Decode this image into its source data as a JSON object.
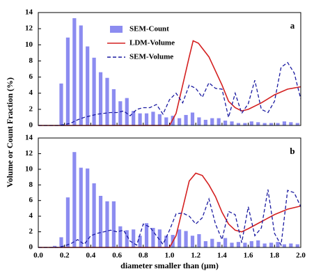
{
  "chart_data": [
    {
      "type": "bar",
      "label": "a",
      "ylabel": "Volume or Count Fraction (%)",
      "legend": "upper center",
      "xlim": [
        0,
        2
      ],
      "ylim": [
        0,
        14
      ],
      "xticks": [
        0,
        0.2,
        0.4,
        0.6,
        0.8,
        1,
        1.2,
        1.4,
        1.6,
        1.8,
        2
      ],
      "yticks": [
        0,
        2,
        4,
        6,
        8,
        10,
        12,
        14
      ],
      "series": [
        {
          "name": "SEM-Count",
          "type": "bar",
          "color": "#8c8cf0",
          "x": [
            0.175,
            0.225,
            0.275,
            0.325,
            0.375,
            0.425,
            0.475,
            0.525,
            0.575,
            0.625,
            0.675,
            0.725,
            0.775,
            0.825,
            0.875,
            0.925,
            0.975,
            1.025,
            1.075,
            1.125,
            1.175,
            1.225,
            1.275,
            1.325,
            1.375,
            1.425,
            1.475,
            1.525,
            1.575,
            1.625,
            1.675,
            1.725,
            1.775,
            1.825,
            1.875,
            1.925,
            1.975
          ],
          "values": [
            5.2,
            10.9,
            13.3,
            12.4,
            9.8,
            8.4,
            6.6,
            5.9,
            4.5,
            3.0,
            3.4,
            1.8,
            1.5,
            1.5,
            1.7,
            1.4,
            1.0,
            1.2,
            0.9,
            1.3,
            1.6,
            1.0,
            0.7,
            0.9,
            0.9,
            0.6,
            0.5,
            0.3,
            0.3,
            0.5,
            0.4,
            0.3,
            0.3,
            0.3,
            0.5,
            0.4,
            0.3
          ]
        },
        {
          "name": "LDM-Volume",
          "type": "line",
          "color": "#d42020",
          "dashed": false,
          "x": [
            0,
            0.2,
            0.4,
            0.6,
            0.8,
            1.0,
            1.05,
            1.1,
            1.15,
            1.18,
            1.22,
            1.3,
            1.4,
            1.45,
            1.5,
            1.55,
            1.6,
            1.7,
            1.8,
            1.9,
            2.0
          ],
          "values": [
            0,
            0,
            0,
            0,
            0,
            0,
            1.5,
            5,
            8.5,
            10.5,
            10.2,
            8.5,
            5,
            3,
            2.2,
            1.8,
            2,
            2.8,
            3.8,
            4.5,
            4.8
          ]
        },
        {
          "name": "SEM-Volume",
          "type": "line",
          "color": "#1a1aa0",
          "dashed": true,
          "x": [
            0,
            0.15,
            0.2,
            0.25,
            0.3,
            0.35,
            0.4,
            0.45,
            0.5,
            0.55,
            0.6,
            0.65,
            0.7,
            0.75,
            0.8,
            0.85,
            0.9,
            0.95,
            1.0,
            1.05,
            1.1,
            1.15,
            1.2,
            1.25,
            1.3,
            1.35,
            1.4,
            1.45,
            1.5,
            1.55,
            1.6,
            1.65,
            1.7,
            1.75,
            1.8,
            1.85,
            1.9,
            1.95,
            2.0
          ],
          "values": [
            0,
            0,
            0.1,
            0.3,
            0.7,
            1.0,
            1.2,
            1.4,
            1.5,
            1.6,
            1.6,
            1.8,
            1.2,
            2.0,
            2.2,
            2.2,
            2.6,
            1.4,
            3.2,
            4.0,
            2.8,
            5.0,
            4.6,
            3.5,
            5.3,
            4.6,
            4.5,
            1.0,
            4.0,
            1.5,
            2.7,
            5.6,
            2.0,
            1.6,
            3.0,
            7.2,
            7.8,
            6.5,
            3.3
          ]
        }
      ]
    },
    {
      "type": "bar",
      "label": "b",
      "xlabel": "diameter smaller than (μm)",
      "xlim": [
        0,
        2
      ],
      "ylim": [
        0,
        14
      ],
      "xticks": [
        {
          "value": 0,
          "label": "0.0"
        },
        0.2,
        0.4,
        0.6,
        0.8,
        {
          "value": 1,
          "label": "1.0"
        },
        1.2,
        1.4,
        1.6,
        1.8,
        {
          "value": 2,
          "label": "2.0"
        }
      ],
      "yticks": [
        0,
        2,
        4,
        6,
        8,
        10,
        12,
        14
      ],
      "series": [
        {
          "type": "bar",
          "color": "#8c8cf0",
          "x": [
            0.125,
            0.175,
            0.225,
            0.275,
            0.325,
            0.375,
            0.425,
            0.475,
            0.525,
            0.575,
            0.625,
            0.675,
            0.725,
            0.775,
            0.825,
            0.875,
            0.925,
            0.975,
            1.025,
            1.075,
            1.125,
            1.175,
            1.225,
            1.275,
            1.325,
            1.375,
            1.425,
            1.475,
            1.525,
            1.575,
            1.625,
            1.675,
            1.725,
            1.775,
            1.825,
            1.875,
            1.925,
            1.975
          ],
          "values": [
            0.2,
            1.3,
            6.4,
            12.2,
            10.2,
            10.1,
            8.2,
            6.6,
            5.9,
            5.9,
            2.7,
            2.2,
            2.3,
            1.5,
            3.1,
            2.5,
            2.3,
            1.5,
            1.6,
            2.3,
            2.1,
            1.5,
            1.7,
            0.8,
            1.1,
            0.7,
            1.2,
            0.6,
            0.7,
            0.6,
            0.8,
            0.9,
            0.5,
            0.6,
            0.7,
            0.4,
            0.5,
            0.4
          ]
        },
        {
          "type": "line",
          "color": "#d42020",
          "dashed": false,
          "x": [
            0,
            0.2,
            0.4,
            0.6,
            0.8,
            1.0,
            1.05,
            1.1,
            1.15,
            1.2,
            1.25,
            1.3,
            1.35,
            1.4,
            1.45,
            1.5,
            1.55,
            1.6,
            1.7,
            1.8,
            1.9,
            2.0
          ],
          "values": [
            0,
            0,
            0,
            0,
            0,
            0,
            1.5,
            5,
            8.5,
            9.5,
            9.2,
            8,
            6.5,
            4.5,
            3,
            2.2,
            2.0,
            2.4,
            3.3,
            4.2,
            4.9,
            5.3
          ]
        },
        {
          "type": "line",
          "color": "#1a1aa0",
          "dashed": true,
          "x": [
            0,
            0.15,
            0.2,
            0.25,
            0.3,
            0.35,
            0.4,
            0.45,
            0.5,
            0.55,
            0.6,
            0.65,
            0.7,
            0.75,
            0.8,
            0.85,
            0.9,
            0.95,
            1.0,
            1.05,
            1.1,
            1.15,
            1.2,
            1.25,
            1.3,
            1.35,
            1.4,
            1.45,
            1.5,
            1.55,
            1.6,
            1.65,
            1.7,
            1.75,
            1.8,
            1.85,
            1.9,
            1.95,
            2.0
          ],
          "values": [
            0,
            0,
            0.2,
            0.5,
            1.0,
            0.4,
            1.5,
            1.8,
            2.0,
            2.2,
            2.0,
            2.2,
            0.8,
            0.3,
            3.0,
            2.6,
            1.5,
            0.4,
            2.2,
            4.3,
            4.4,
            4.0,
            3.0,
            3.8,
            6.2,
            3.0,
            1.0,
            4.6,
            4.2,
            0.6,
            5.2,
            1.5,
            2.5,
            7.4,
            1.8,
            0.3,
            7.3,
            7.0,
            5.2
          ]
        }
      ]
    }
  ]
}
